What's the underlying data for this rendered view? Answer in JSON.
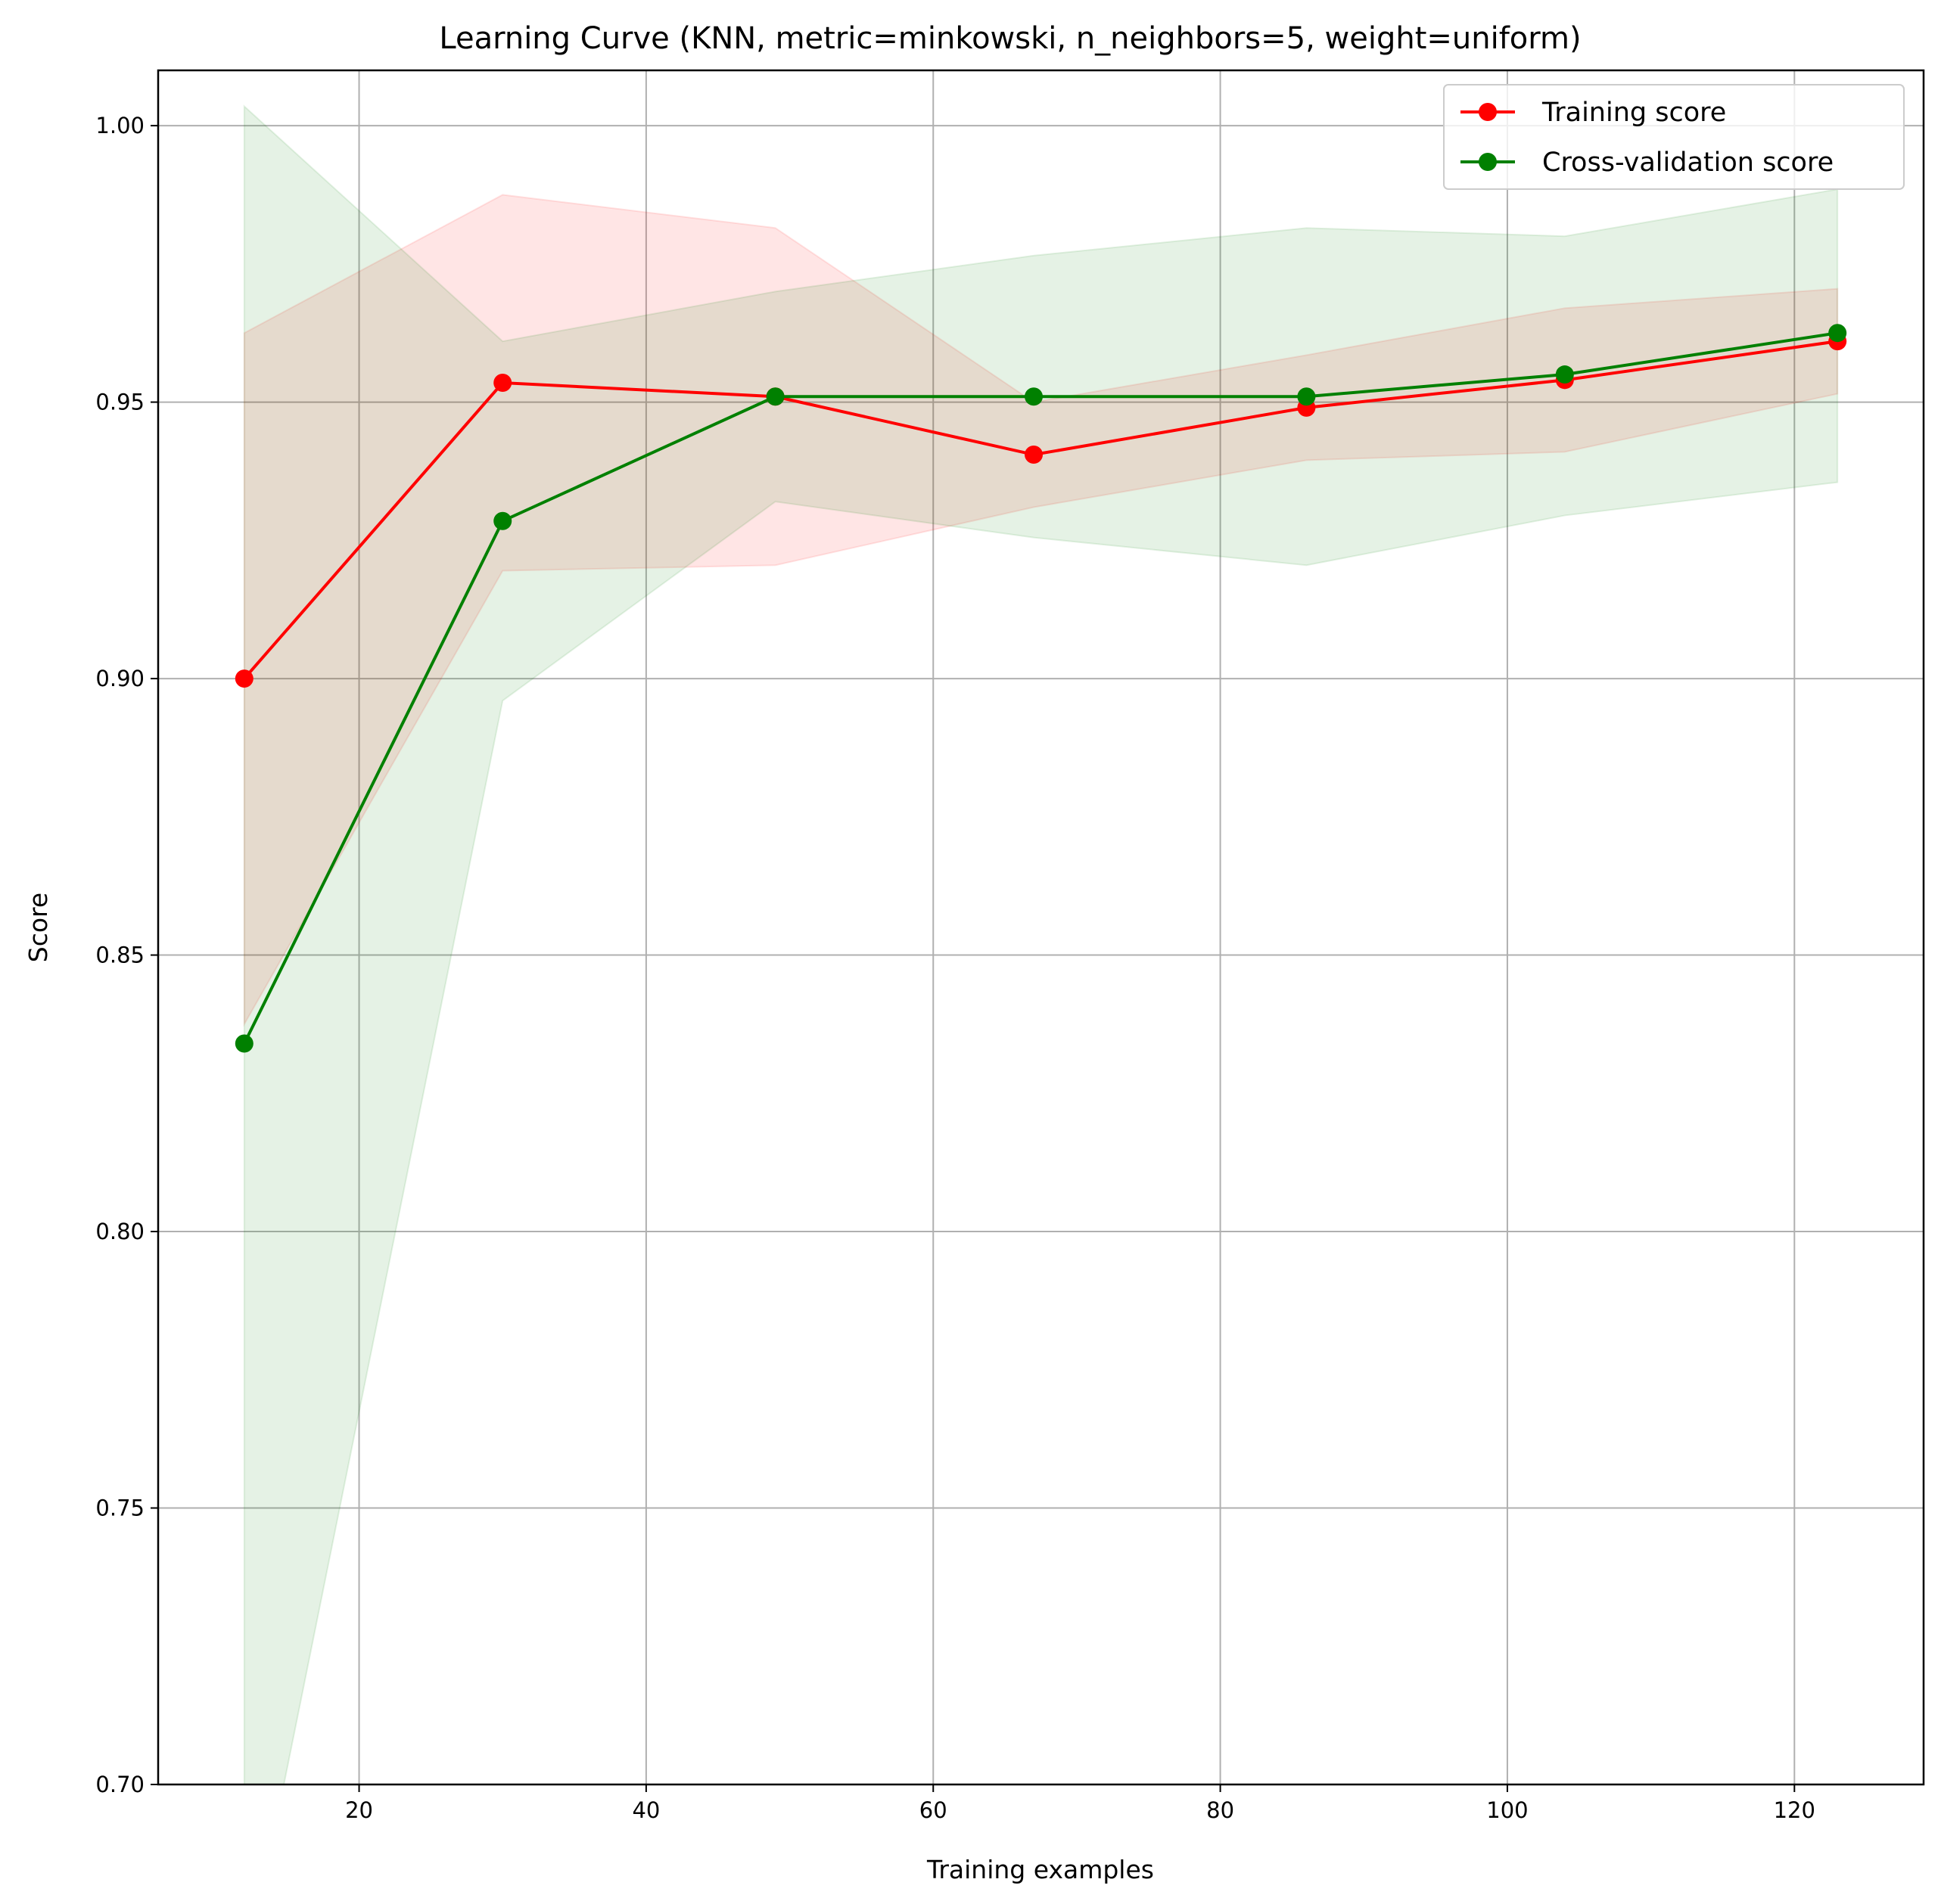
{
  "chart_data": {
    "type": "line",
    "title": "Learning Curve (KNN, metric=minkowski, n_neighbors=5, weight=uniform)",
    "xlabel": "Training examples",
    "ylabel": "Score",
    "xlim": [
      6,
      129
    ],
    "ylim": [
      0.7,
      1.01
    ],
    "xticks": [
      20,
      40,
      60,
      80,
      100,
      120
    ],
    "xtick_labels": [
      "20",
      "40",
      "60",
      "80",
      "100",
      "120"
    ],
    "yticks": [
      0.7,
      0.75,
      0.8,
      0.85,
      0.9,
      0.95,
      1.0
    ],
    "ytick_labels": [
      "0.70",
      "0.75",
      "0.80",
      "0.85",
      "0.90",
      "0.95",
      "1.00"
    ],
    "grid": true,
    "legend_position": "top-right",
    "x": [
      12,
      30,
      49,
      67,
      86,
      104,
      123
    ],
    "series": [
      {
        "name": "Training score",
        "color": "#ff0000",
        "values": [
          0.9,
          0.9535,
          0.951,
          0.9405,
          0.949,
          0.954,
          0.961
        ],
        "band_upper": [
          0.9625,
          0.9875,
          0.9815,
          0.95,
          0.9585,
          0.967,
          0.9705
        ],
        "band_lower": [
          0.8375,
          0.9195,
          0.9205,
          0.931,
          0.9395,
          0.941,
          0.9515
        ]
      },
      {
        "name": "Cross-validation score",
        "color": "#008000",
        "values": [
          0.834,
          0.9285,
          0.951,
          0.951,
          0.951,
          0.955,
          0.9625
        ],
        "band_upper": [
          1.0035,
          0.961,
          0.97,
          0.9765,
          0.9815,
          0.98,
          0.9885
        ],
        "band_lower": [
          0.6645,
          0.896,
          0.932,
          0.9255,
          0.9205,
          0.9295,
          0.9355
        ]
      }
    ]
  }
}
